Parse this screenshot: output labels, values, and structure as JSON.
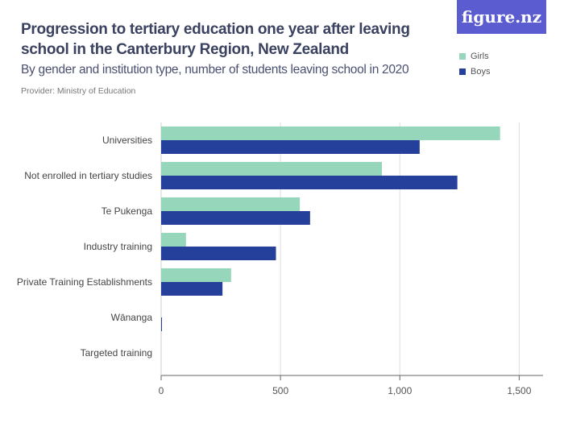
{
  "header": {
    "title": "Progression to tertiary education one year after leaving school in the Canterbury Region, New Zealand",
    "subtitle": "By gender and institution type, number of students leaving school in 2020",
    "provider": "Provider: Ministry of Education",
    "logo": "figure.nz"
  },
  "chart_data": {
    "type": "bar",
    "orientation": "horizontal",
    "title": "Progression to tertiary education one year after leaving school in the Canterbury Region, New Zealand",
    "subtitle": "By gender and institution type, number of students leaving school in 2020",
    "categories": [
      "Universities",
      "Not enrolled in tertiary studies",
      "Te Pukenga",
      "Industry training",
      "Private Training Establishments",
      "Wānanga",
      "Targeted training"
    ],
    "series": [
      {
        "name": "Girls",
        "color": "#96d6bb",
        "values": [
          1420,
          925,
          581,
          104,
          293,
          0,
          0
        ]
      },
      {
        "name": "Boys",
        "color": "#25409a",
        "values": [
          1083,
          1241,
          624,
          481,
          257,
          3,
          0
        ]
      }
    ],
    "xlim": [
      0,
      1600
    ],
    "xticks": [
      0,
      500,
      1000,
      1500
    ],
    "xtick_labels": [
      "0",
      "500",
      "1,000",
      "1,500"
    ],
    "grid": true,
    "legend": "top-right"
  }
}
